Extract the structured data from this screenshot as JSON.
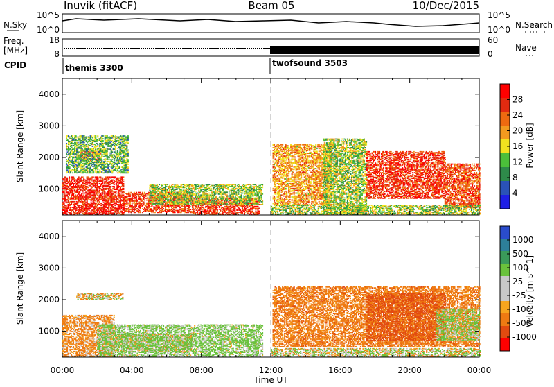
{
  "header": {
    "station": "Inuvik (fitACF)",
    "beam": "Beam 05",
    "date": "10/Dec/2015"
  },
  "side_labels": {
    "nsky": "N.Sky",
    "freq_line1": "Freq.",
    "freq_line2": "[MHz]",
    "cpid": "CPID",
    "nsearch": "N.Search",
    "nave": "Nave"
  },
  "strip_ticks": {
    "nsky_left_top": "10^5",
    "nsky_left_bottom": "10^0",
    "nsky_right_top": "10^5",
    "nsky_right_bottom": "10^0",
    "freq_left_top": "18",
    "freq_left_bottom": "8",
    "nave_right_top": "60",
    "nave_right_bottom": "0"
  },
  "cpid_segments": [
    {
      "label": "themis 3300",
      "start_hour": 0
    },
    {
      "label": "twofsound 3503",
      "start_hour": 12
    }
  ],
  "colors": {
    "power_scale": [
      "#1e1ee6",
      "#2a52b8",
      "#2e8a4a",
      "#4bbf3a",
      "#f2e21f",
      "#f29a1f",
      "#ee6a10",
      "#e22a10",
      "#ff0000"
    ],
    "velocity_scale": [
      "#2a4ccc",
      "#2d7f9a",
      "#3a9a5a",
      "#6ac23c",
      "#c8c8c8",
      "#c8c8c8",
      "#f7a51e",
      "#ee7a12",
      "#e24a10",
      "#ff0000"
    ]
  },
  "chart_data": [
    {
      "type": "heatmap",
      "title": "",
      "xlabel": "Time UT",
      "ylabel": "Slant Range [km]",
      "xlim": [
        0,
        24
      ],
      "ylim": [
        180,
        4500
      ],
      "x_ticks": [
        "00:00",
        "04:00",
        "08:00",
        "12:00",
        "16:00",
        "20:00",
        "00:00"
      ],
      "y_ticks": [
        "1000",
        "2000",
        "3000",
        "4000"
      ],
      "colorbar": {
        "label": "Power [dB]",
        "range": [
          0,
          32
        ],
        "ticks": [
          "4",
          "8",
          "12",
          "16",
          "20",
          "24",
          "28"
        ]
      },
      "cpid_marker_hour": 12,
      "regions": [
        {
          "t0": 0.0,
          "t1": 3.5,
          "r0": 200,
          "r1": 1400,
          "value": 28
        },
        {
          "t0": 1.0,
          "t1": 2.2,
          "r0": 1900,
          "r1": 2200,
          "value": 27
        },
        {
          "t0": 0.2,
          "t1": 3.8,
          "r0": 1500,
          "r1": 2700,
          "value": 12
        },
        {
          "t0": 3.5,
          "t1": 7.5,
          "r0": 250,
          "r1": 900,
          "value": 26
        },
        {
          "t0": 7.5,
          "t1": 11.3,
          "r0": 200,
          "r1": 700,
          "value": 27
        },
        {
          "t0": 5.0,
          "t1": 11.5,
          "r0": 500,
          "r1": 1150,
          "value": 14
        },
        {
          "t0": 12.1,
          "t1": 15.5,
          "r0": 500,
          "r1": 2400,
          "value": 20
        },
        {
          "t0": 15.0,
          "t1": 17.5,
          "r0": 200,
          "r1": 2600,
          "value": 14
        },
        {
          "t0": 17.5,
          "t1": 22.0,
          "r0": 700,
          "r1": 2200,
          "value": 27
        },
        {
          "t0": 22.0,
          "t1": 24.0,
          "r0": 400,
          "r1": 1800,
          "value": 25
        },
        {
          "t0": 12.0,
          "t1": 24.0,
          "r0": 200,
          "r1": 500,
          "value": 14
        }
      ]
    },
    {
      "type": "heatmap",
      "title": "",
      "xlabel": "Time UT",
      "ylabel": "Slant Range [km]",
      "xlim": [
        0,
        24
      ],
      "ylim": [
        180,
        4500
      ],
      "x_ticks": [
        "00:00",
        "04:00",
        "08:00",
        "12:00",
        "16:00",
        "20:00",
        "00:00"
      ],
      "y_ticks": [
        "1000",
        "2000",
        "3000",
        "4000"
      ],
      "colorbar": {
        "label": "Velocity [m s^-1]",
        "ticks": [
          "1000",
          "500",
          "100",
          "25",
          "-25",
          "-100",
          "-500",
          "-1000"
        ]
      },
      "cpid_marker_hour": 12,
      "regions": [
        {
          "t0": 0.0,
          "t1": 3.0,
          "r0": 200,
          "r1": 1500,
          "value": -200
        },
        {
          "t0": 0.8,
          "t1": 3.5,
          "r0": 2000,
          "r1": 2200,
          "value": 0
        },
        {
          "t0": 3.0,
          "t1": 7.5,
          "r0": 350,
          "r1": 900,
          "value": 0
        },
        {
          "t0": 2.0,
          "t1": 11.5,
          "r0": 200,
          "r1": 1200,
          "value": 200
        },
        {
          "t0": 12.1,
          "t1": 24.0,
          "r0": 500,
          "r1": 2400,
          "value": -300
        },
        {
          "t0": 17.5,
          "t1": 22.0,
          "r0": 700,
          "r1": 2200,
          "value": -600
        },
        {
          "t0": 21.5,
          "t1": 24.0,
          "r0": 700,
          "r1": 1700,
          "value": 150
        },
        {
          "t0": 12.0,
          "t1": 24.0,
          "r0": 200,
          "r1": 450,
          "value": 50
        }
      ]
    }
  ]
}
